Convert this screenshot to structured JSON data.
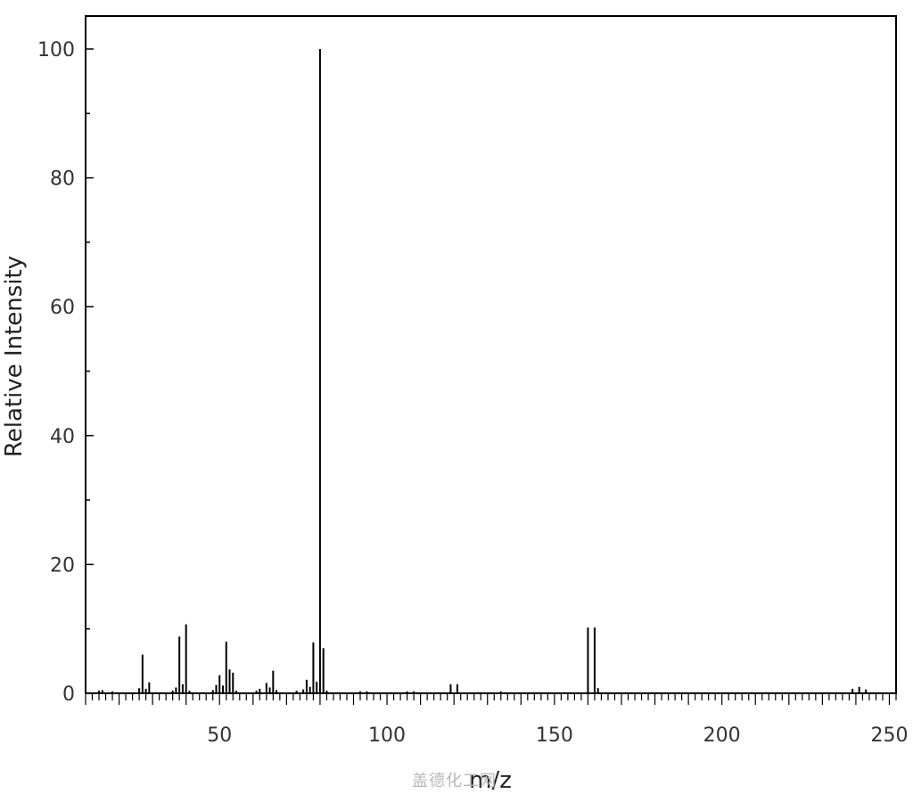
{
  "chart_data": {
    "type": "bar",
    "title": "",
    "xlabel": "m/z",
    "ylabel": "Relative Intensity",
    "xlim": [
      10,
      252
    ],
    "ylim": [
      0,
      100
    ],
    "xticks": [
      50,
      100,
      150,
      200,
      250
    ],
    "yticks": [
      0,
      20,
      40,
      60,
      80,
      100
    ],
    "grid": false,
    "color": "#000000",
    "peaks": [
      {
        "x": 14,
        "y": 0.4
      },
      {
        "x": 15,
        "y": 0.5
      },
      {
        "x": 18,
        "y": 0.3
      },
      {
        "x": 26,
        "y": 0.8
      },
      {
        "x": 27,
        "y": 6.0
      },
      {
        "x": 28,
        "y": 0.7
      },
      {
        "x": 29,
        "y": 1.7
      },
      {
        "x": 36,
        "y": 0.4
      },
      {
        "x": 37,
        "y": 0.9
      },
      {
        "x": 38,
        "y": 8.8
      },
      {
        "x": 39,
        "y": 1.4
      },
      {
        "x": 40,
        "y": 10.7
      },
      {
        "x": 41,
        "y": 0.4
      },
      {
        "x": 48,
        "y": 0.5
      },
      {
        "x": 49,
        "y": 1.3
      },
      {
        "x": 50,
        "y": 2.8
      },
      {
        "x": 51,
        "y": 1.2
      },
      {
        "x": 52,
        "y": 8.0
      },
      {
        "x": 53,
        "y": 3.7
      },
      {
        "x": 54,
        "y": 3.2
      },
      {
        "x": 55,
        "y": 0.4
      },
      {
        "x": 61,
        "y": 0.4
      },
      {
        "x": 62,
        "y": 0.7
      },
      {
        "x": 64,
        "y": 1.6
      },
      {
        "x": 65,
        "y": 0.9
      },
      {
        "x": 66,
        "y": 3.5
      },
      {
        "x": 67,
        "y": 0.5
      },
      {
        "x": 73,
        "y": 0.4
      },
      {
        "x": 75,
        "y": 0.6
      },
      {
        "x": 76,
        "y": 2.1
      },
      {
        "x": 77,
        "y": 1.0
      },
      {
        "x": 78,
        "y": 7.9
      },
      {
        "x": 79,
        "y": 1.8
      },
      {
        "x": 80,
        "y": 100.0
      },
      {
        "x": 81,
        "y": 7.0
      },
      {
        "x": 82,
        "y": 0.4
      },
      {
        "x": 92,
        "y": 0.3
      },
      {
        "x": 94,
        "y": 0.3
      },
      {
        "x": 106,
        "y": 0.3
      },
      {
        "x": 108,
        "y": 0.3
      },
      {
        "x": 119,
        "y": 1.4
      },
      {
        "x": 121,
        "y": 1.4
      },
      {
        "x": 134,
        "y": 0.3
      },
      {
        "x": 160,
        "y": 10.2
      },
      {
        "x": 162,
        "y": 10.2
      },
      {
        "x": 163,
        "y": 0.8
      },
      {
        "x": 239,
        "y": 0.7
      },
      {
        "x": 241,
        "y": 1.0
      },
      {
        "x": 243,
        "y": 0.6
      }
    ]
  },
  "watermark": "盖德化工网"
}
